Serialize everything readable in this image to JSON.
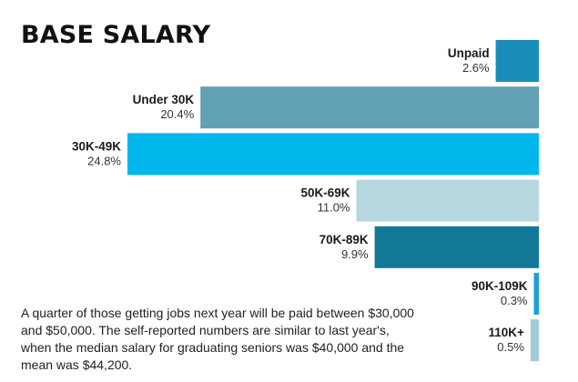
{
  "chart_data": {
    "type": "bar",
    "orientation": "horizontal",
    "title": "BASE SALARY",
    "categories": [
      "Unpaid",
      "Under 30K",
      "30K-49K",
      "50K-69K",
      "70K-89K",
      "90K-109K",
      "110K+"
    ],
    "values": [
      2.6,
      20.4,
      24.8,
      11.0,
      9.9,
      0.3,
      0.5
    ],
    "value_labels": [
      "2.6%",
      "20.4%",
      "24.8%",
      "11.0%",
      "9.9%",
      "0.3%",
      "0.5%"
    ],
    "colors": [
      "#1a8cb8",
      "#62a0b3",
      "#00b8ec",
      "#b8d8e1",
      "#127896",
      "#1c9fd8",
      "#9fcbdb"
    ],
    "unit": "%",
    "xlim": [
      0,
      24.8
    ]
  },
  "caption": "A quarter of those getting jobs next year will be paid between $30,000 and $50,000. The self-reported numbers are similar to last year's, when the median salary for graduating seniors was $40,000 and the mean was $44,200."
}
